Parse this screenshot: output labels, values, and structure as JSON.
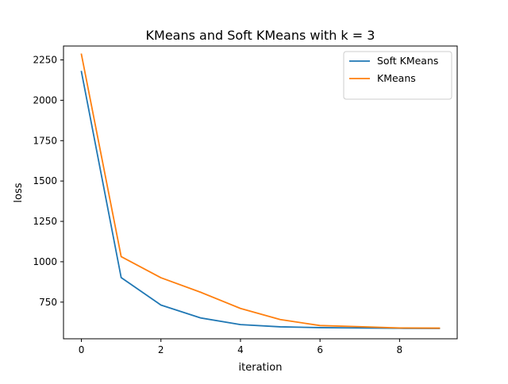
{
  "chart_data": {
    "type": "line",
    "title": "KMeans and Soft KMeans with k = 3",
    "xlabel": "iteration",
    "ylabel": "loss",
    "x": [
      0,
      1,
      2,
      3,
      4,
      5,
      6,
      7,
      8,
      9
    ],
    "xlim": [
      -0.45,
      9.45
    ],
    "ylim": [
      523,
      2336
    ],
    "xticks": [
      0,
      2,
      4,
      6,
      8
    ],
    "yticks": [
      750,
      1000,
      1250,
      1500,
      1750,
      2000,
      2250
    ],
    "grid": false,
    "legend_position": "top-right",
    "series": [
      {
        "name": "Soft KMeans",
        "color": "#1f77b4",
        "values": [
          2178,
          902,
          732,
          652,
          611,
          597,
          592,
          590,
          588,
          587
        ]
      },
      {
        "name": "KMeans",
        "color": "#ff7f0e",
        "values": [
          2285,
          1032,
          901,
          811,
          711,
          642,
          605,
          598,
          590,
          589
        ]
      }
    ]
  }
}
